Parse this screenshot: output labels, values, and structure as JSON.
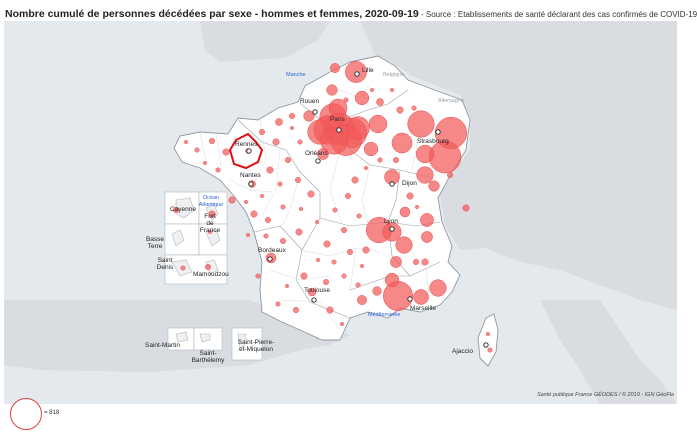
{
  "title": "Nombre cumulé de personnes décédées par sexe - hommes et femmes, 2020-09-19",
  "source": " - Source : Etablissements de santé déclarant des cas confirmés de COVID-19",
  "credits": "Santé publique France GÉODES / © 2019 - IGN GéoFla",
  "legend": {
    "value_label": "= 818",
    "reference_value": 818
  },
  "selected_department": "Ille-et-Vilaine",
  "colors": {
    "land": "#ffffff",
    "neighbor_land": "#d9dde1",
    "sea": "#e4e9ee",
    "bubble_fill": "#f25a5a",
    "bubble_stroke": "#ea4747",
    "selected_outline": "#dd1111",
    "sea_label": "#2e63d6"
  },
  "labels": {
    "cities": [
      "Lille",
      "Rouen",
      "Paris",
      "Rennes",
      "Orléans",
      "Strasbourg",
      "Nantes",
      "Dijon",
      "Lyon",
      "Bordeaux",
      "Toulouse",
      "Marseille",
      "Ajaccio"
    ],
    "seas": [
      "Manche",
      "Océan Atlantique",
      "Méditerranée"
    ],
    "countries": [
      "Belgique",
      "Allemagne"
    ],
    "overseas": [
      "Cayenne",
      "Fort de France",
      "Basse Terre",
      "Saint Denis",
      "Mamoudzou",
      "Saint-Martin",
      "Saint-Barthélemy",
      "Saint-Pierre-et-Miquelon"
    ]
  },
  "bubbles": [
    {
      "place": "Nord",
      "deaths": 360
    },
    {
      "place": "Pas-de-Calais",
      "deaths": 70
    },
    {
      "place": "Somme",
      "deaths": 90
    },
    {
      "place": "Aisne",
      "deaths": 150
    },
    {
      "place": "Oise",
      "deaths": 260
    },
    {
      "place": "Seine-Maritime",
      "deaths": 90
    },
    {
      "place": "Val-d'Oise",
      "deaths": 560
    },
    {
      "place": "Paris",
      "deaths": 818
    },
    {
      "place": "Seine-Saint-Denis",
      "deaths": 700
    },
    {
      "place": "Hauts-de-Seine",
      "deaths": 650
    },
    {
      "place": "Val-de-Marne",
      "deaths": 780
    },
    {
      "place": "Yvelines",
      "deaths": 480
    },
    {
      "place": "Essonne",
      "deaths": 560
    },
    {
      "place": "Seine-et-Marne",
      "deaths": 420
    },
    {
      "place": "Marne",
      "deaths": 250
    },
    {
      "place": "Ardennes",
      "deaths": 40
    },
    {
      "place": "Moselle",
      "deaths": 560
    },
    {
      "place": "Meurthe-et-Moselle",
      "deaths": 320
    },
    {
      "place": "Bas-Rhin",
      "deaths": 800
    },
    {
      "place": "Haut-Rhin",
      "deaths": 818
    },
    {
      "place": "Vosges",
      "deaths": 250
    },
    {
      "place": "Aube",
      "deaths": 150
    },
    {
      "place": "Côte-d'Or",
      "deaths": 180
    },
    {
      "place": "Doubs",
      "deaths": 220
    },
    {
      "place": "Territoire de Belfort",
      "deaths": 90
    },
    {
      "place": "Rhône",
      "deaths": 520
    },
    {
      "place": "Loire",
      "deaths": 270
    },
    {
      "place": "Isère",
      "deaths": 220
    },
    {
      "place": "Ain",
      "deaths": 80
    },
    {
      "place": "Haute-Savoie",
      "deaths": 140
    },
    {
      "place": "Savoie",
      "deaths": 100
    },
    {
      "place": "Bouches-du-Rhône",
      "deaths": 690
    },
    {
      "place": "Var",
      "deaths": 180
    },
    {
      "place": "Alpes-Maritimes",
      "deaths": 220
    },
    {
      "place": "Gard",
      "deaths": 60
    },
    {
      "place": "Hérault",
      "deaths": 70
    },
    {
      "place": "Vaucluse",
      "deaths": 150
    },
    {
      "place": "Drôme",
      "deaths": 100
    },
    {
      "place": "Haute-Garonne",
      "deaths": 50
    },
    {
      "place": "Gironde",
      "deaths": 80
    },
    {
      "place": "Loire-Atlantique",
      "deaths": 40
    },
    {
      "place": "Loiret",
      "deaths": 100
    },
    {
      "place": "Calvados",
      "deaths": 40
    },
    {
      "place": "Ille-et-Vilaine",
      "deaths": 20
    }
  ]
}
